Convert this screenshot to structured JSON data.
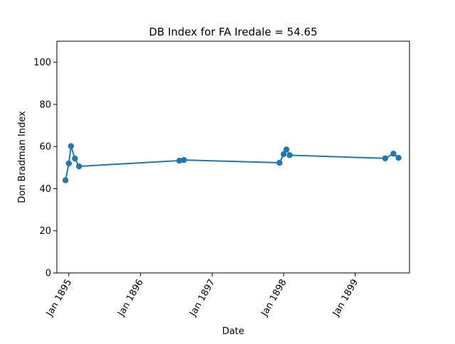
{
  "chart_data": {
    "type": "line",
    "title": "DB Index for FA Iredale = 54.65",
    "xlabel": "Date",
    "ylabel": "Don Bradman Index",
    "xlim": [
      "1894-11-01",
      "1899-10-05"
    ],
    "ylim": [
      0,
      110
    ],
    "x_ticks": [
      {
        "date": "1895-01-01",
        "label": "Jan 1895"
      },
      {
        "date": "1896-01-01",
        "label": "Jan 1896"
      },
      {
        "date": "1897-01-01",
        "label": "Jan 1897"
      },
      {
        "date": "1898-01-01",
        "label": "Jan 1898"
      },
      {
        "date": "1899-01-01",
        "label": "Jan 1899"
      }
    ],
    "y_ticks": [
      0,
      20,
      40,
      60,
      80,
      100
    ],
    "grid": false,
    "color": "#1f77b4",
    "series": [
      {
        "points": [
          {
            "x": "1894-12-15",
            "y": 44.0
          },
          {
            "x": "1895-01-01",
            "y": 52.0
          },
          {
            "x": "1895-01-12",
            "y": 60.2
          },
          {
            "x": "1895-02-01",
            "y": 54.3
          },
          {
            "x": "1895-02-22",
            "y": 50.6
          },
          {
            "x": "1896-07-18",
            "y": 53.3
          },
          {
            "x": "1896-08-10",
            "y": 53.6
          },
          {
            "x": "1897-12-11",
            "y": 52.3
          },
          {
            "x": "1898-01-01",
            "y": 56.4
          },
          {
            "x": "1898-01-15",
            "y": 58.6
          },
          {
            "x": "1898-02-01",
            "y": 55.9
          },
          {
            "x": "1899-06-03",
            "y": 54.4
          },
          {
            "x": "1899-07-15",
            "y": 56.6
          },
          {
            "x": "1899-08-10",
            "y": 54.65
          }
        ]
      }
    ]
  }
}
